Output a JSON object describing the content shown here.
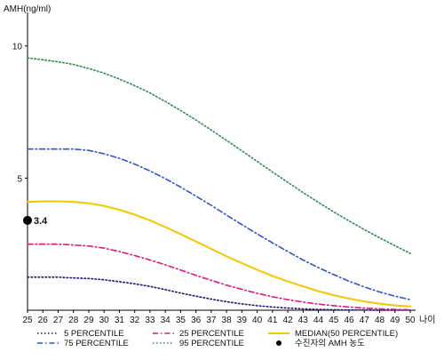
{
  "chart_data": {
    "type": "line",
    "xlabel": "나이",
    "ylabel": "AMH(ng/ml)",
    "ylim": [
      0,
      11
    ],
    "xlim": [
      25,
      50
    ],
    "grid": false,
    "x_ticks": [
      25,
      26,
      27,
      28,
      29,
      30,
      31,
      32,
      33,
      34,
      35,
      36,
      37,
      38,
      39,
      40,
      41,
      42,
      43,
      44,
      45,
      46,
      47,
      48,
      49,
      50
    ],
    "y_ticks": [
      5,
      10
    ],
    "x": [
      25,
      26,
      27,
      28,
      29,
      30,
      31,
      32,
      33,
      34,
      35,
      36,
      37,
      38,
      39,
      40,
      41,
      42,
      43,
      44,
      45,
      46,
      47,
      48,
      49,
      50
    ],
    "series": [
      {
        "name": "5 PERCENTILE",
        "color": "#1a1a6e",
        "style": "dotted",
        "values": [
          1.25,
          1.25,
          1.25,
          1.22,
          1.2,
          1.15,
          1.08,
          1.0,
          0.9,
          0.78,
          0.65,
          0.53,
          0.42,
          0.32,
          0.24,
          0.17,
          0.12,
          0.08,
          0.05,
          0.03,
          0.02,
          0.01,
          0.01,
          0.0,
          0.0,
          0.0
        ]
      },
      {
        "name": "25 PERCENTILE",
        "color": "#e0177d",
        "style": "dashdot",
        "values": [
          2.5,
          2.5,
          2.5,
          2.47,
          2.43,
          2.35,
          2.22,
          2.07,
          1.9,
          1.72,
          1.52,
          1.32,
          1.13,
          0.95,
          0.79,
          0.64,
          0.51,
          0.4,
          0.31,
          0.23,
          0.17,
          0.12,
          0.08,
          0.05,
          0.03,
          0.02
        ]
      },
      {
        "name": "MEDIAN(50 PERCENTILE)",
        "color": "#f2c800",
        "style": "solid",
        "values": [
          4.1,
          4.12,
          4.12,
          4.1,
          4.05,
          3.95,
          3.8,
          3.62,
          3.4,
          3.15,
          2.88,
          2.6,
          2.32,
          2.04,
          1.78,
          1.53,
          1.3,
          1.09,
          0.9,
          0.72,
          0.57,
          0.44,
          0.33,
          0.25,
          0.18,
          0.14
        ]
      },
      {
        "name": "75 PERCENTILE",
        "color": "#3355c4",
        "style": "dashdot",
        "values": [
          6.1,
          6.1,
          6.1,
          6.1,
          6.05,
          5.92,
          5.75,
          5.53,
          5.27,
          4.98,
          4.66,
          4.32,
          3.97,
          3.6,
          3.24,
          2.89,
          2.55,
          2.22,
          1.9,
          1.61,
          1.35,
          1.1,
          0.88,
          0.69,
          0.53,
          0.4
        ]
      },
      {
        "name": "95 PERCENTILE",
        "color": "#2e8b57",
        "style": "dotted",
        "values": [
          9.55,
          9.48,
          9.4,
          9.3,
          9.15,
          8.97,
          8.75,
          8.5,
          8.22,
          7.9,
          7.56,
          7.2,
          6.82,
          6.43,
          6.03,
          5.63,
          5.23,
          4.84,
          4.45,
          4.08,
          3.72,
          3.38,
          3.05,
          2.74,
          2.44,
          2.15
        ]
      }
    ],
    "points": [
      {
        "name": "수진자의 AMH 농도",
        "x": 25,
        "y": 3.4,
        "label": "3.4",
        "color": "#000000"
      }
    ],
    "legend": {
      "position": "bottom",
      "order": [
        "5 PERCENTILE",
        "25 PERCENTILE",
        "MEDIAN(50 PERCENTILE)",
        "75 PERCENTILE",
        "95 PERCENTILE",
        "수진자의 AMH 농도"
      ]
    }
  }
}
